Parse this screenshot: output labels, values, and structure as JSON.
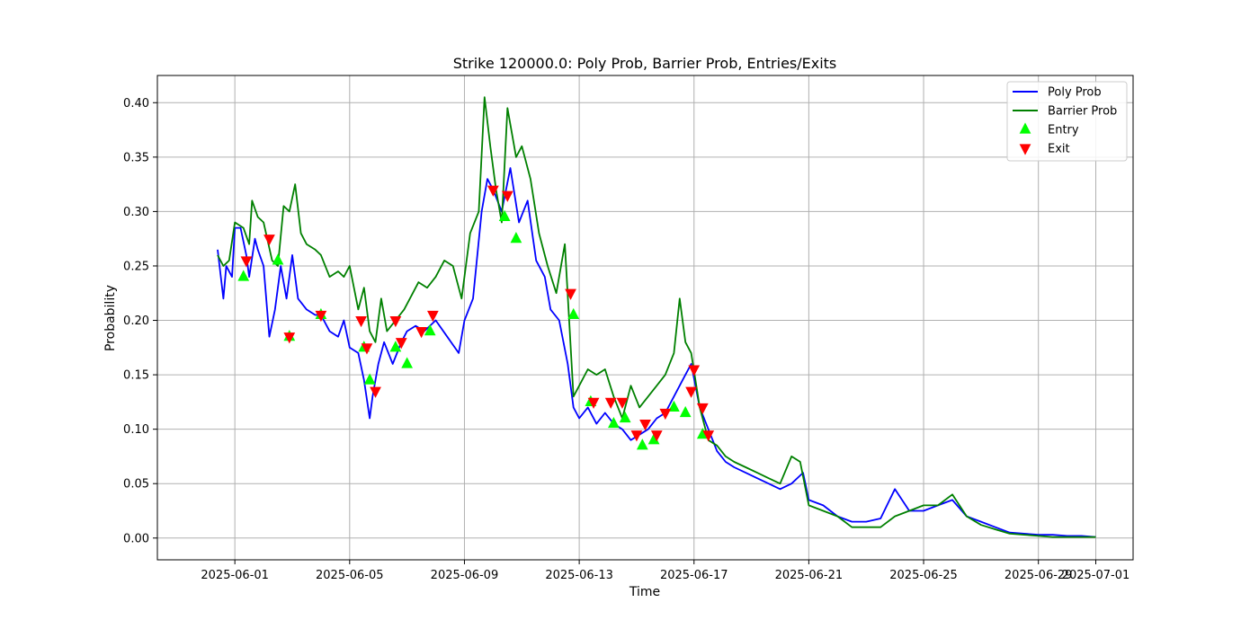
{
  "chart_data": {
    "type": "line",
    "title": "Strike 120000.0: Poly Prob, Barrier Prob, Entries/Exits",
    "xlabel": "Time",
    "ylabel": "Probability",
    "x_tick_labels": [
      "2025-06-01",
      "2025-06-05",
      "2025-06-09",
      "2025-06-13",
      "2025-06-17",
      "2025-06-21",
      "2025-06-25",
      "2025-06-29",
      "2025-07-01"
    ],
    "x_tick_days": [
      1,
      5,
      9,
      13,
      17,
      21,
      25,
      29,
      31
    ],
    "y_ticks": [
      0.0,
      0.05,
      0.1,
      0.15,
      0.2,
      0.25,
      0.3,
      0.35,
      0.4
    ],
    "y_tick_labels": [
      "0.00",
      "0.05",
      "0.10",
      "0.15",
      "0.20",
      "0.25",
      "0.30",
      "0.35",
      "0.40"
    ],
    "xlim_days": [
      28.3,
      32.3
    ],
    "ylim": [
      -0.02,
      0.425
    ],
    "grid": true,
    "legend_position": "upper right",
    "x_unit_note": "",
    "series": [
      {
        "name": "Poly Prob",
        "color": "#0000ff",
        "x": [
          0.4,
          0.6,
          0.7,
          0.9,
          1.0,
          1.2,
          1.4,
          1.5,
          1.7,
          1.8,
          2.0,
          2.2,
          2.4,
          2.6,
          2.8,
          3.0,
          3.2,
          3.5,
          3.8,
          4.0,
          4.3,
          4.6,
          4.8,
          5.0,
          5.3,
          5.5,
          5.7,
          5.8,
          6.0,
          6.2,
          6.5,
          6.8,
          7.0,
          7.3,
          7.6,
          8.0,
          8.4,
          8.8,
          9.0,
          9.3,
          9.6,
          9.8,
          10.0,
          10.3,
          10.6,
          10.9,
          11.2,
          11.5,
          11.8,
          12.0,
          12.3,
          12.6,
          12.8,
          13.0,
          13.3,
          13.6,
          13.9,
          14.2,
          14.5,
          14.8,
          15.1,
          15.4,
          15.7,
          16.0,
          16.3,
          16.6,
          16.9,
          17.2,
          17.5,
          17.8,
          18.1,
          18.4,
          18.8,
          19.2,
          19.6,
          20.0,
          20.4,
          20.8,
          21.0,
          21.5,
          22.0,
          22.5,
          23.0,
          23.5,
          24.0,
          24.5,
          25.0,
          25.5,
          26.0,
          26.5,
          27.0,
          27.5,
          28.0,
          28.5,
          29.0,
          29.5,
          30.0,
          30.5,
          31.0
        ],
        "y": [
          0.265,
          0.22,
          0.25,
          0.24,
          0.285,
          0.285,
          0.26,
          0.24,
          0.275,
          0.265,
          0.25,
          0.185,
          0.21,
          0.25,
          0.22,
          0.26,
          0.22,
          0.21,
          0.205,
          0.205,
          0.19,
          0.185,
          0.2,
          0.175,
          0.17,
          0.145,
          0.11,
          0.13,
          0.16,
          0.18,
          0.16,
          0.18,
          0.19,
          0.195,
          0.19,
          0.2,
          0.185,
          0.17,
          0.2,
          0.22,
          0.3,
          0.33,
          0.32,
          0.3,
          0.34,
          0.29,
          0.31,
          0.255,
          0.24,
          0.21,
          0.2,
          0.16,
          0.12,
          0.11,
          0.12,
          0.105,
          0.115,
          0.105,
          0.1,
          0.09,
          0.095,
          0.1,
          0.11,
          0.115,
          0.13,
          0.145,
          0.16,
          0.12,
          0.1,
          0.08,
          0.07,
          0.065,
          0.06,
          0.055,
          0.05,
          0.045,
          0.05,
          0.06,
          0.035,
          0.03,
          0.02,
          0.015,
          0.015,
          0.018,
          0.045,
          0.025,
          0.025,
          0.03,
          0.035,
          0.02,
          0.015,
          0.01,
          0.005,
          0.004,
          0.003,
          0.003,
          0.002,
          0.002,
          0.001
        ]
      },
      {
        "name": "Barrier Prob",
        "color": "#008000",
        "x": [
          0.4,
          0.6,
          0.8,
          1.0,
          1.3,
          1.5,
          1.6,
          1.8,
          2.0,
          2.3,
          2.5,
          2.7,
          2.9,
          3.1,
          3.3,
          3.5,
          3.8,
          4.0,
          4.3,
          4.6,
          4.8,
          5.0,
          5.3,
          5.5,
          5.7,
          5.9,
          6.1,
          6.3,
          6.6,
          6.9,
          7.1,
          7.4,
          7.7,
          8.0,
          8.3,
          8.6,
          8.9,
          9.2,
          9.5,
          9.7,
          9.9,
          10.1,
          10.3,
          10.5,
          10.8,
          11.0,
          11.3,
          11.6,
          11.9,
          12.2,
          12.5,
          12.8,
          13.0,
          13.3,
          13.6,
          13.9,
          14.2,
          14.5,
          14.8,
          15.1,
          15.4,
          15.7,
          16.0,
          16.3,
          16.5,
          16.7,
          16.9,
          17.2,
          17.5,
          17.8,
          18.1,
          18.4,
          18.8,
          19.2,
          19.6,
          20.0,
          20.4,
          20.7,
          21.0,
          21.5,
          22.0,
          22.5,
          23.0,
          23.5,
          24.0,
          24.5,
          25.0,
          25.5,
          26.0,
          26.5,
          27.0,
          27.5,
          28.0,
          28.5,
          29.0,
          29.5,
          30.0,
          30.5,
          31.0
        ],
        "y": [
          0.26,
          0.25,
          0.255,
          0.29,
          0.285,
          0.27,
          0.31,
          0.295,
          0.29,
          0.255,
          0.25,
          0.305,
          0.3,
          0.325,
          0.28,
          0.27,
          0.265,
          0.26,
          0.24,
          0.245,
          0.24,
          0.25,
          0.21,
          0.23,
          0.19,
          0.18,
          0.22,
          0.19,
          0.2,
          0.21,
          0.22,
          0.235,
          0.23,
          0.24,
          0.255,
          0.25,
          0.22,
          0.28,
          0.3,
          0.405,
          0.36,
          0.32,
          0.29,
          0.395,
          0.35,
          0.36,
          0.33,
          0.28,
          0.25,
          0.225,
          0.27,
          0.13,
          0.14,
          0.155,
          0.15,
          0.155,
          0.13,
          0.11,
          0.14,
          0.12,
          0.13,
          0.14,
          0.15,
          0.17,
          0.22,
          0.18,
          0.17,
          0.12,
          0.09,
          0.085,
          0.075,
          0.07,
          0.065,
          0.06,
          0.055,
          0.05,
          0.075,
          0.07,
          0.03,
          0.025,
          0.02,
          0.01,
          0.01,
          0.01,
          0.02,
          0.025,
          0.03,
          0.03,
          0.04,
          0.02,
          0.012,
          0.008,
          0.004,
          0.003,
          0.002,
          0.001,
          0.001,
          0.001,
          0.001
        ]
      }
    ],
    "markers": [
      {
        "name": "Entry",
        "color": "#00ff00",
        "shape": "triangle-up",
        "points": [
          [
            1.3,
            0.24
          ],
          [
            2.5,
            0.255
          ],
          [
            2.9,
            0.185
          ],
          [
            4.0,
            0.205
          ],
          [
            5.5,
            0.175
          ],
          [
            5.7,
            0.145
          ],
          [
            6.6,
            0.175
          ],
          [
            7.0,
            0.16
          ],
          [
            7.8,
            0.19
          ],
          [
            10.4,
            0.295
          ],
          [
            10.8,
            0.275
          ],
          [
            12.8,
            0.205
          ],
          [
            13.4,
            0.125
          ],
          [
            14.2,
            0.105
          ],
          [
            14.6,
            0.11
          ],
          [
            15.2,
            0.085
          ],
          [
            15.6,
            0.09
          ],
          [
            16.3,
            0.12
          ],
          [
            16.7,
            0.115
          ],
          [
            17.3,
            0.095
          ]
        ]
      },
      {
        "name": "Exit",
        "color": "#ff0000",
        "shape": "triangle-down",
        "points": [
          [
            1.4,
            0.255
          ],
          [
            2.2,
            0.275
          ],
          [
            2.9,
            0.185
          ],
          [
            4.0,
            0.205
          ],
          [
            5.4,
            0.2
          ],
          [
            5.6,
            0.175
          ],
          [
            5.9,
            0.135
          ],
          [
            6.6,
            0.2
          ],
          [
            6.8,
            0.18
          ],
          [
            7.5,
            0.19
          ],
          [
            7.9,
            0.205
          ],
          [
            10.0,
            0.32
          ],
          [
            10.5,
            0.315
          ],
          [
            12.7,
            0.225
          ],
          [
            13.5,
            0.125
          ],
          [
            14.1,
            0.125
          ],
          [
            14.5,
            0.125
          ],
          [
            15.0,
            0.095
          ],
          [
            15.3,
            0.105
          ],
          [
            15.7,
            0.095
          ],
          [
            16.0,
            0.115
          ],
          [
            16.9,
            0.135
          ],
          [
            17.0,
            0.155
          ],
          [
            17.3,
            0.12
          ],
          [
            17.5,
            0.095
          ]
        ]
      }
    ]
  }
}
